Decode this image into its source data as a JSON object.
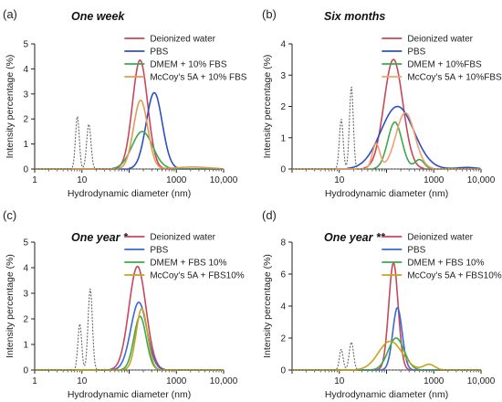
{
  "chart_data": [
    {
      "type": "line",
      "panel": "(a)",
      "title": "One week",
      "xlabel": "Hydrodynamic diameter (nm)",
      "ylabel": "Intensity percentage (%)",
      "xscale": "log",
      "xlim": [
        1,
        10000
      ],
      "ylim": [
        0,
        5
      ],
      "xticks": [
        {
          "v": 1,
          "label": "1"
        },
        {
          "v": 10,
          "label": "10"
        },
        {
          "v": 100,
          "label": ""
        },
        {
          "v": 1000,
          "label": "1000"
        },
        {
          "v": 10000,
          "label": "10,000"
        }
      ],
      "yticks": [
        0,
        1,
        2,
        3,
        4,
        5
      ],
      "legend_position": "top-right",
      "series": [
        {
          "name": "Deionized water",
          "color": "#c8475a",
          "peaks": [
            [
              170,
              4.35,
              0.16
            ]
          ]
        },
        {
          "name": "PBS",
          "color": "#2d4fc2",
          "peaks": [
            [
              340,
              3.05,
              0.17
            ]
          ]
        },
        {
          "name": "DMEM + 10% FBS",
          "color": "#3aaa4c",
          "peaks": [
            [
              190,
              1.5,
              0.22
            ]
          ]
        },
        {
          "name": "McCoy's 5A + 10% FBS",
          "color": "#e49a55",
          "peaks": [
            [
              175,
              2.75,
              0.15
            ],
            [
              2200,
              0.08,
              0.35
            ]
          ]
        },
        {
          "name": "",
          "color": "#666666",
          "dashed": true,
          "peaks": [
            [
              8,
              2.1,
              0.04
            ],
            [
              14,
              1.8,
              0.045
            ]
          ]
        }
      ]
    },
    {
      "type": "line",
      "panel": "(b)",
      "title": "Six months",
      "xlabel": "Hydrodynamic diameter (nm)",
      "ylabel": "Intensity percentage (%)",
      "xscale": "log",
      "xlim": [
        1,
        10000
      ],
      "ylim": [
        0,
        4
      ],
      "xticks": [
        {
          "v": 1,
          "label": ""
        },
        {
          "v": 10,
          "label": "10"
        },
        {
          "v": 100,
          "label": ""
        },
        {
          "v": 1000,
          "label": "1000"
        },
        {
          "v": 10000,
          "label": "10,000"
        }
      ],
      "yticks": [
        0,
        1,
        2,
        3,
        4
      ],
      "legend_position": "top-right",
      "series": [
        {
          "name": "Deionized water",
          "color": "#c8475a",
          "peaks": [
            [
              140,
              3.5,
              0.2
            ]
          ]
        },
        {
          "name": "PBS",
          "color": "#2d4fc2",
          "peaks": [
            [
              170,
              2.0,
              0.35
            ],
            [
              5000,
              0.05,
              0.2
            ]
          ]
        },
        {
          "name": "DMEM + 10%FBS",
          "color": "#3aaa4c",
          "peaks": [
            [
              150,
              1.5,
              0.15
            ],
            [
              500,
              0.3,
              0.1
            ]
          ]
        },
        {
          "name": "McCoy's 5A + 10%FBS",
          "color": "#f2a06f",
          "peaks": [
            [
              250,
              1.8,
              0.2
            ],
            [
              60,
              0.8,
              0.08
            ]
          ]
        },
        {
          "name": "",
          "color": "#666666",
          "dashed": true,
          "peaks": [
            [
              11,
              1.6,
              0.04
            ],
            [
              18,
              2.65,
              0.04
            ]
          ]
        }
      ]
    },
    {
      "type": "line",
      "panel": "(c)",
      "title": "One year *",
      "xlabel": "Hydrodynamic diameter (nm)",
      "ylabel": "Intensity percentage (%)",
      "xscale": "log",
      "xlim": [
        1,
        10000
      ],
      "ylim": [
        0,
        5
      ],
      "xticks": [
        {
          "v": 1,
          "label": "1"
        },
        {
          "v": 10,
          "label": "10"
        },
        {
          "v": 100,
          "label": ""
        },
        {
          "v": 1000,
          "label": "1000"
        },
        {
          "v": 10000,
          "label": "10,000"
        }
      ],
      "yticks": [
        0,
        1,
        2,
        3,
        4,
        5
      ],
      "legend_position": "top-right",
      "series": [
        {
          "name": "Deionized water",
          "color": "#c8475a",
          "peaks": [
            [
              150,
              4.05,
              0.18
            ]
          ]
        },
        {
          "name": "PBS",
          "color": "#3b66d6",
          "peaks": [
            [
              160,
              2.65,
              0.17
            ]
          ]
        },
        {
          "name": "DMEM + FBS 10%",
          "color": "#3aaa4c",
          "peaks": [
            [
              170,
              2.1,
              0.13
            ]
          ]
        },
        {
          "name": "McCoy's 5A + FBS10%",
          "color": "#c9a21d",
          "peaks": [
            [
              185,
              2.4,
              0.12
            ]
          ]
        },
        {
          "name": "",
          "color": "#666666",
          "dashed": true,
          "peaks": [
            [
              9,
              1.8,
              0.04
            ],
            [
              15,
              3.2,
              0.045
            ]
          ]
        }
      ]
    },
    {
      "type": "line",
      "panel": "(d)",
      "title": "One year **",
      "xlabel": "Hydrodynamic diameter (nm)",
      "ylabel": "Intensity percentage (%)",
      "xscale": "log",
      "xlim": [
        1,
        10000
      ],
      "ylim": [
        0,
        8
      ],
      "xticks": [
        {
          "v": 1,
          "label": ""
        },
        {
          "v": 10,
          "label": "10"
        },
        {
          "v": 100,
          "label": ""
        },
        {
          "v": 1000,
          "label": "1000"
        },
        {
          "v": 10000,
          "label": "10,000"
        }
      ],
      "yticks": [
        0,
        2,
        4,
        6,
        8
      ],
      "legend_position": "top-right",
      "series": [
        {
          "name": "Deionized water",
          "color": "#c8475a",
          "peaks": [
            [
              140,
              6.7,
              0.1
            ]
          ]
        },
        {
          "name": "PBS",
          "color": "#3b66d6",
          "peaks": [
            [
              170,
              3.9,
              0.1
            ]
          ]
        },
        {
          "name": "DMEM + FBS 10%",
          "color": "#3aaa4c",
          "peaks": [
            [
              160,
              2.0,
              0.17
            ]
          ]
        },
        {
          "name": "McCoy's 5A + FBS10%",
          "color": "#c9a21d",
          "peaks": [
            [
              120,
              1.8,
              0.25
            ],
            [
              800,
              0.35,
              0.12
            ]
          ]
        },
        {
          "name": "",
          "color": "#666666",
          "dashed": true,
          "peaks": [
            [
              11,
              1.3,
              0.04
            ],
            [
              18,
              1.75,
              0.045
            ]
          ]
        }
      ]
    }
  ]
}
